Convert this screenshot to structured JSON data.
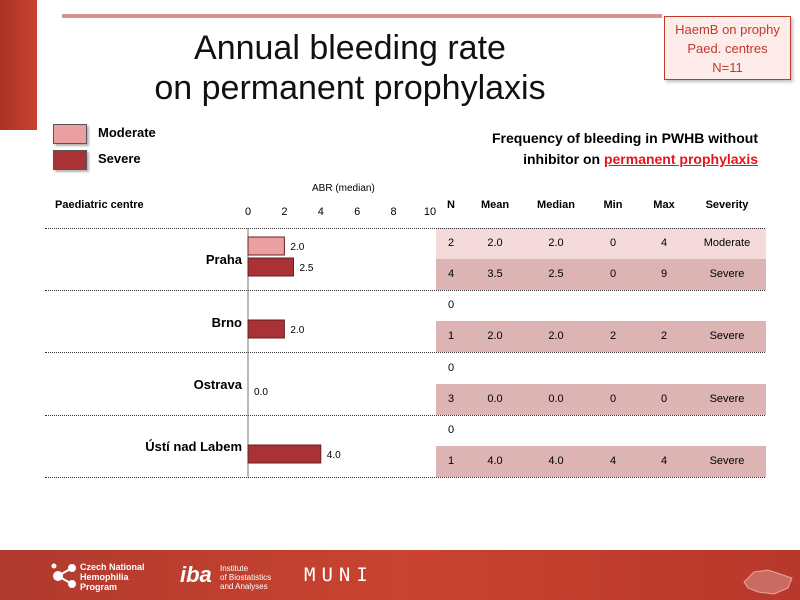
{
  "slide": {
    "title_line1": "Annual bleeding rate",
    "title_line2": "on permanent prophylaxis",
    "info_box": [
      "HaemB on prophy",
      "Paed. centres",
      "N=11"
    ],
    "subtitle_line1": "Frequency of bleeding in PWHB without",
    "subtitle_line2_prefix": "inhibitor on",
    "subtitle_highlight": "permanent prophylaxis",
    "centre_header": "Paediatric centre"
  },
  "legend": [
    {
      "label": "Moderate",
      "color": "#eaa0a0"
    },
    {
      "label": "Severe",
      "color": "#a83236"
    }
  ],
  "table": {
    "columns": [
      "N",
      "Mean",
      "Median",
      "Min",
      "Max",
      "Severity"
    ],
    "rows": [
      {
        "N": "2",
        "Mean": "2.0",
        "Median": "2.0",
        "Min": "0",
        "Max": "4",
        "Severity": "Moderate"
      },
      {
        "N": "4",
        "Mean": "3.5",
        "Median": "2.5",
        "Min": "0",
        "Max": "9",
        "Severity": "Severe"
      },
      {
        "N": "0",
        "Mean": "",
        "Median": "",
        "Min": "",
        "Max": "",
        "Severity": ""
      },
      {
        "N": "1",
        "Mean": "2.0",
        "Median": "2.0",
        "Min": "2",
        "Max": "2",
        "Severity": "Severe"
      },
      {
        "N": "0",
        "Mean": "",
        "Median": "",
        "Min": "",
        "Max": "",
        "Severity": ""
      },
      {
        "N": "3",
        "Mean": "0.0",
        "Median": "0.0",
        "Min": "0",
        "Max": "0",
        "Severity": "Severe"
      },
      {
        "N": "0",
        "Mean": "",
        "Median": "",
        "Min": "",
        "Max": "",
        "Severity": ""
      },
      {
        "N": "1",
        "Mean": "4.0",
        "Median": "4.0",
        "Min": "4",
        "Max": "4",
        "Severity": "Severe"
      }
    ]
  },
  "chart_data": {
    "type": "bar",
    "orientation": "horizontal",
    "xlabel": "ABR (median)",
    "xlim": [
      0,
      10
    ],
    "ticks": [
      0,
      2,
      4,
      6,
      8,
      10
    ],
    "categories": [
      "Praha",
      "Brno",
      "Ostrava",
      "Ústí nad Labem"
    ],
    "series": [
      {
        "name": "Moderate",
        "color": "#eaa0a0",
        "values": [
          2.0,
          null,
          null,
          null
        ],
        "labels": [
          "2.0",
          "",
          "",
          ""
        ]
      },
      {
        "name": "Severe",
        "color": "#a83236",
        "values": [
          2.5,
          2.0,
          0.0,
          4.0
        ],
        "labels": [
          "2.5",
          "2.0",
          "0.0",
          "4.0"
        ]
      }
    ]
  },
  "footer": {
    "logo1": [
      "Czech National",
      "Hemophilia",
      "Program"
    ],
    "logo2_mark": "iba",
    "logo2_text": [
      "Institute",
      "of Biostatistics",
      "and Analyses"
    ],
    "logo3": "MUNI"
  }
}
